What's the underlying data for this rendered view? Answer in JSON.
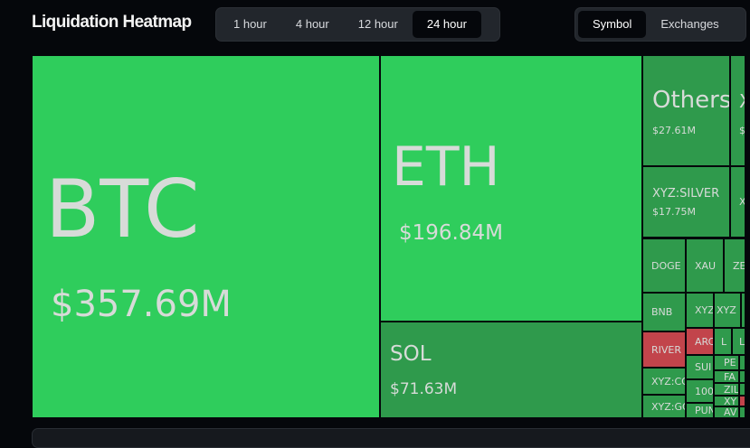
{
  "header": {
    "title": "Liquidation Heatmap",
    "time_ranges": [
      {
        "label": "1 hour",
        "active": false
      },
      {
        "label": "4 hour",
        "active": false
      },
      {
        "label": "12 hour",
        "active": false
      },
      {
        "label": "24 hour",
        "active": true
      }
    ],
    "views": [
      {
        "label": "Symbol",
        "active": true
      },
      {
        "label": "Exchanges",
        "active": false
      }
    ]
  },
  "colors": {
    "long_large": "#2fcd5c",
    "long": "#2f9a4c",
    "short": "#c2444b",
    "background": "#05070b"
  },
  "tiles": {
    "btc": {
      "name": "BTC",
      "value": "$357.69M"
    },
    "eth": {
      "name": "ETH",
      "value": "$196.84M"
    },
    "sol": {
      "name": "SOL",
      "value": "$71.63M"
    },
    "others": {
      "name": "Others",
      "value": "$27.61M"
    },
    "x1": {
      "name": "X",
      "value": "$"
    },
    "silver": {
      "name": "XYZ:SILVER",
      "value": "$17.75M"
    },
    "x2": {
      "name": "X"
    },
    "doge": {
      "name": "DOGE"
    },
    "xau": {
      "name": "XAU"
    },
    "ze": {
      "name": "ZE"
    },
    "bnb": {
      "name": "BNB"
    },
    "xyz1": {
      "name": "XYZ"
    },
    "xyz2": {
      "name": "XYZ"
    },
    "river": {
      "name": "RIVER"
    },
    "arc": {
      "name": "ARC"
    },
    "l1": {
      "name": "L"
    },
    "l2": {
      "name": "L"
    },
    "xyzco": {
      "name": "XYZ:CO"
    },
    "sui": {
      "name": "SUI"
    },
    "pe": {
      "name": "PE"
    },
    "fa": {
      "name": "FA"
    },
    "hundred": {
      "name": "100"
    },
    "zil": {
      "name": "ZIL"
    },
    "xy": {
      "name": "XY"
    },
    "pun": {
      "name": "PUN"
    },
    "av": {
      "name": "AV"
    },
    "xyzgo": {
      "name": "XYZ:GO"
    }
  }
}
